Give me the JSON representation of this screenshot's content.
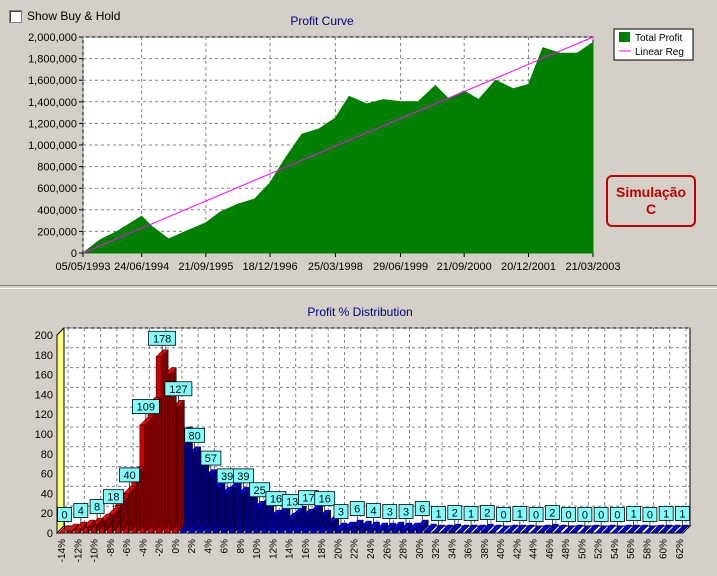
{
  "controls": {
    "show_buy_hold_label": "Show Buy & Hold",
    "show_buy_hold_checked": false
  },
  "badge": {
    "line1": "Simulação",
    "line2": "C"
  },
  "chart_data": [
    {
      "type": "area",
      "title": "Profit Curve",
      "x_tick_labels": [
        "05/05/1993",
        "24/06/1994",
        "21/09/1995",
        "18/12/1996",
        "25/03/1998",
        "29/06/1999",
        "21/09/2000",
        "20/12/2001",
        "21/03/2003"
      ],
      "y_tick_labels": [
        "0",
        "200,000",
        "400,000",
        "600,000",
        "800,000",
        "1,000,000",
        "1,200,000",
        "1,400,000",
        "1,600,000",
        "1,800,000",
        "2,000,000"
      ],
      "ylim": [
        0,
        2000000
      ],
      "grid": true,
      "legend_position": "top-right",
      "colors": {
        "area": "#008000",
        "regression": "#ff00ff"
      },
      "series": [
        {
          "name": "Total Profit",
          "x": [
            "05/05/1993",
            "01/09/1993",
            "01/01/1994",
            "24/06/1994",
            "01/09/1994",
            "01/01/1995",
            "01/05/1995",
            "21/09/1995",
            "01/01/1996",
            "01/05/1996",
            "01/09/1996",
            "18/12/1996",
            "01/04/1997",
            "01/08/1997",
            "01/12/1997",
            "25/03/1998",
            "01/07/1998",
            "01/11/1998",
            "01/03/1999",
            "29/06/1999",
            "01/11/1999",
            "01/03/2000",
            "01/06/2000",
            "21/09/2000",
            "01/01/2001",
            "01/05/2001",
            "01/09/2001",
            "20/12/2001",
            "01/04/2002",
            "01/08/2002",
            "01/12/2002",
            "21/03/2003"
          ],
          "values": [
            0,
            120000,
            200000,
            340000,
            250000,
            130000,
            200000,
            280000,
            380000,
            450000,
            500000,
            650000,
            870000,
            1100000,
            1150000,
            1250000,
            1450000,
            1380000,
            1420000,
            1400000,
            1400000,
            1550000,
            1430000,
            1500000,
            1420000,
            1600000,
            1520000,
            1560000,
            1900000,
            1850000,
            1850000,
            1950000
          ]
        },
        {
          "name": "Linear Reg",
          "x": [
            "05/05/1993",
            "21/03/2003"
          ],
          "values": [
            0,
            2000000
          ]
        }
      ]
    },
    {
      "type": "bar",
      "title": "Profit % Distribution",
      "categories": [
        "-14%",
        "-13%",
        "-12%",
        "-11%",
        "-10%",
        "-9%",
        "-8%",
        "-7%",
        "-6%",
        "-5%",
        "-4%",
        "-3%",
        "-2%",
        "-1%",
        "0%",
        "1%",
        "2%",
        "3%",
        "4%",
        "5%",
        "6%",
        "7%",
        "8%",
        "9%",
        "10%",
        "11%",
        "12%",
        "13%",
        "14%",
        "15%",
        "16%",
        "17%",
        "18%",
        "19%",
        "20%",
        "21%",
        "22%",
        "23%",
        "24%",
        "25%",
        "26%",
        "27%",
        "28%",
        "29%",
        "30%",
        "31%",
        "32%",
        "33%",
        "34%",
        "35%",
        "36%",
        "37%",
        "38%",
        "39%",
        "40%",
        "41%",
        "42%",
        "43%",
        "44%",
        "45%",
        "46%",
        "47%",
        "48%",
        "49%",
        "50%",
        "51%",
        "52%",
        "53%",
        "54%",
        "55%",
        "56%",
        "57%",
        "58%",
        "59%",
        "60%",
        "61%",
        "62%"
      ],
      "x_tick_labels": [
        "-14%",
        "-12%",
        "-10%",
        "-8%",
        "-6%",
        "-4%",
        "-2%",
        "0%",
        "2%",
        "4%",
        "6%",
        "8%",
        "10%",
        "12%",
        "14%",
        "16%",
        "18%",
        "20%",
        "22%",
        "24%",
        "26%",
        "28%",
        "30%",
        "32%",
        "34%",
        "36%",
        "38%",
        "40%",
        "42%",
        "44%",
        "46%",
        "48%",
        "50%",
        "52%",
        "54%",
        "56%",
        "58%",
        "60%",
        "62%"
      ],
      "values": [
        0,
        2,
        4,
        6,
        8,
        12,
        18,
        28,
        40,
        60,
        109,
        130,
        178,
        160,
        127,
        100,
        80,
        70,
        57,
        45,
        39,
        45,
        39,
        40,
        25,
        30,
        16,
        20,
        13,
        20,
        17,
        22,
        16,
        10,
        3,
        4,
        6,
        5,
        4,
        3,
        3,
        4,
        3,
        3,
        6,
        2,
        1,
        1,
        2,
        1,
        1,
        1,
        2,
        1,
        0,
        1,
        1,
        1,
        0,
        1,
        2,
        1,
        0,
        1,
        0,
        1,
        0,
        1,
        0,
        1,
        1,
        1,
        0,
        1,
        1,
        1,
        1
      ],
      "labels": {
        "-14%": 0,
        "-12%": 4,
        "-10%": 8,
        "-8%": 18,
        "-6%": 40,
        "-4%": 109,
        "-2%": 178,
        "0%": 127,
        "2%": 80,
        "4%": 57,
        "6%": 39,
        "8%": 39,
        "10%": 25,
        "12%": 16,
        "14%": 13,
        "16%": 17,
        "18%": 16,
        "20%": 3,
        "22%": 6,
        "24%": 4,
        "26%": 3,
        "28%": 3,
        "30%": 6,
        "32%": 1,
        "34%": 2,
        "36%": 1,
        "38%": 2,
        "40%": 0,
        "42%": 1,
        "44%": 0,
        "46%": 2,
        "48%": 0,
        "50%": 0,
        "52%": 0,
        "54%": 0,
        "56%": 1,
        "58%": 0,
        "60%": 1,
        "62%": 1
      },
      "y_tick_labels": [
        "0",
        "20",
        "40",
        "60",
        "80",
        "100",
        "120",
        "140",
        "160",
        "180",
        "200"
      ],
      "ylim": [
        0,
        200
      ],
      "grid": true,
      "colors": {
        "negative": "#cc0000",
        "positive_low": "#0000cc",
        "positive_high": "#0000cc",
        "label_bg": "#80ffff",
        "wall": "#ffff80"
      }
    }
  ]
}
